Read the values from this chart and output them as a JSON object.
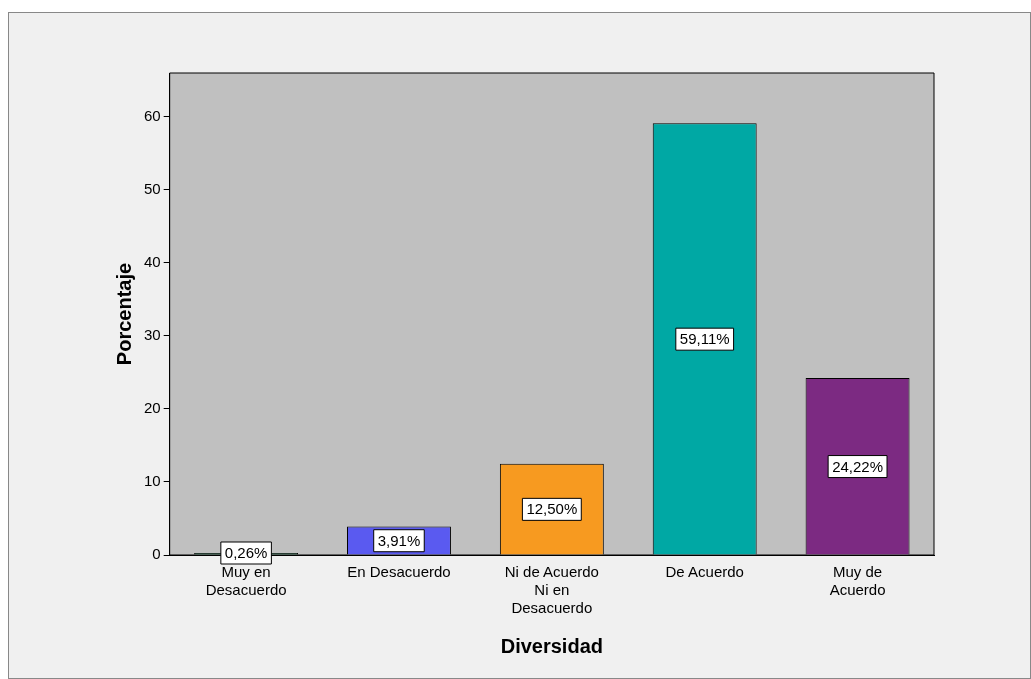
{
  "chart_data": {
    "type": "bar",
    "categories": [
      "Muy en Desacuerdo",
      "En Desacuerdo",
      "Ni de Acuerdo Ni en Desacuerdo",
      "De Acuerdo",
      "Muy de Acuerdo"
    ],
    "values": [
      0.26,
      3.91,
      12.5,
      59.11,
      24.22
    ],
    "colors": [
      "#0b5c34",
      "#5a5af0",
      "#f79a20",
      "#00a8a4",
      "#7c2a82"
    ],
    "value_labels": [
      "0,26%",
      "3,91%",
      "12,50%",
      "59,11%",
      "24,22%"
    ],
    "xlabel": "Diversidad",
    "ylabel": "Porcentaje",
    "ylim": [
      0,
      66
    ],
    "yticks": [
      0,
      10,
      20,
      30,
      40,
      50,
      60
    ],
    "grid": false,
    "legend": false
  }
}
